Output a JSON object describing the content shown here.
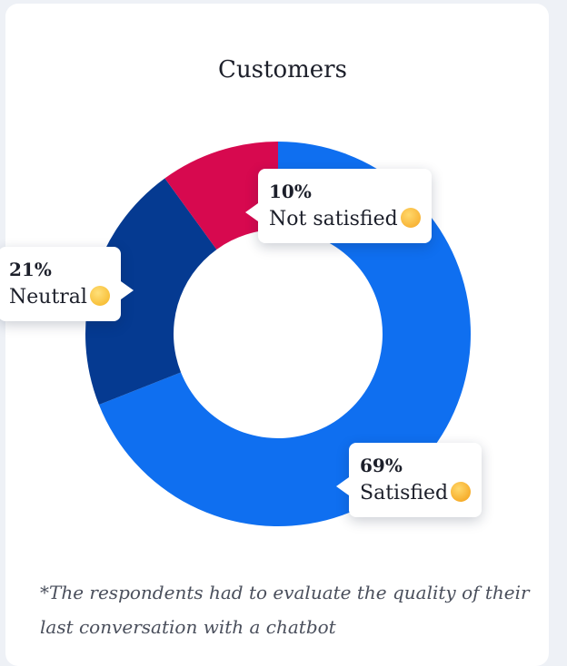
{
  "chart_data": {
    "type": "donut",
    "title": "Customers",
    "slices": [
      {
        "label": "Satisfied",
        "value": 69,
        "value_label": "69%",
        "color": "#0f6ff0",
        "emoji": "smiling-face-with-heart-eyes"
      },
      {
        "label": "Neutral",
        "value": 21,
        "value_label": "21%",
        "color": "#053a91",
        "emoji": "neutral-face"
      },
      {
        "label": "Not satisfied",
        "value": 10,
        "value_label": "10%",
        "color": "#d7094f",
        "emoji": "unamused-face"
      }
    ]
  },
  "footnote": "*The respondents had to evaluate the quality of their last conversation with a chatbot"
}
